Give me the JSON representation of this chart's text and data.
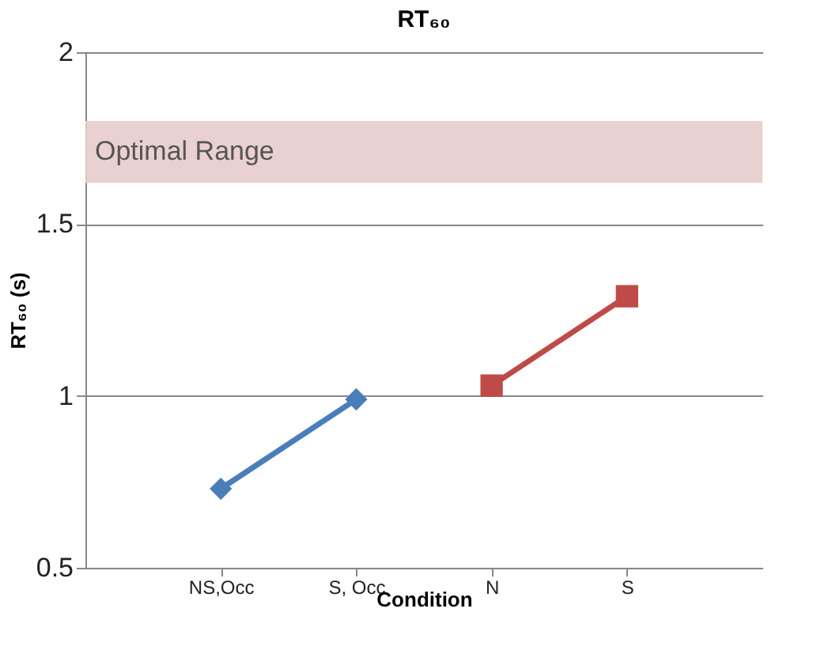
{
  "chart_data": {
    "type": "line",
    "title": "RT₆₀",
    "xlabel": "Condition",
    "ylabel": "RT₆₀ (s)",
    "categories": [
      "NS,Occ",
      "S, Occ",
      "N",
      "S"
    ],
    "series": [
      {
        "color": "#4a7ebb",
        "marker": "diamond",
        "values": [
          0.73,
          0.99,
          null,
          null
        ]
      },
      {
        "color": "#be4b48",
        "marker": "square",
        "values": [
          null,
          null,
          1.03,
          1.29
        ]
      }
    ],
    "ylim": [
      0.5,
      2
    ],
    "yticks": [
      0.5,
      1,
      1.5,
      2
    ],
    "grid": "y",
    "line_style": "solid",
    "bands": [
      {
        "axis": "y",
        "from": 1.62,
        "to": 1.8,
        "label": "Optimal Range",
        "color": "#e8cccc"
      }
    ]
  }
}
